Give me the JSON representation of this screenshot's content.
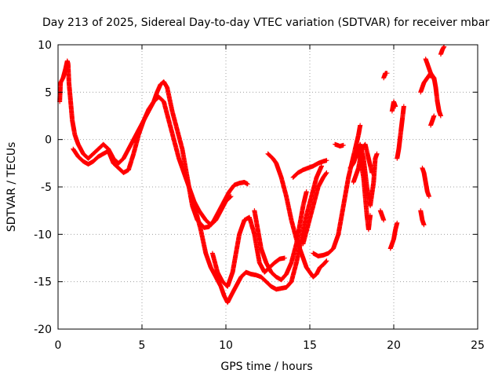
{
  "chart_data": {
    "type": "scatter",
    "title": "Day 213 of 2025, Sidereal Day-to-day VTEC variation (SDTVAR) for receiver mbar",
    "xlabel": "GPS time / hours",
    "ylabel": "SDTVAR / TECUs",
    "xlim": [
      0,
      25
    ],
    "ylim": [
      -20,
      10
    ],
    "xticks": [
      "0",
      "5",
      "10",
      "15",
      "20",
      "25"
    ],
    "yticks": [
      "10",
      "5",
      "0",
      "-5",
      "-10",
      "-15",
      "-20"
    ],
    "xtick_values": [
      0,
      5,
      10,
      15,
      20,
      25
    ],
    "ytick_values": [
      10,
      5,
      0,
      -5,
      -10,
      -15,
      -20
    ],
    "grid": true,
    "marker": "+",
    "color": "#ff0000",
    "series": [
      {
        "name": "s1",
        "points": [
          [
            0.1,
            4
          ],
          [
            0.15,
            6
          ],
          [
            0.3,
            6.5
          ],
          [
            0.45,
            7.5
          ],
          [
            0.55,
            8.3
          ],
          [
            0.6,
            8
          ],
          [
            0.65,
            6
          ],
          [
            0.75,
            4
          ],
          [
            0.85,
            2
          ],
          [
            1.0,
            0.5
          ],
          [
            1.2,
            -0.5
          ],
          [
            1.5,
            -1.5
          ],
          [
            1.8,
            -2
          ],
          [
            2.1,
            -1.5
          ],
          [
            2.4,
            -1
          ],
          [
            2.7,
            -0.5
          ],
          [
            3.0,
            -1
          ],
          [
            3.3,
            -2
          ],
          [
            3.6,
            -2.5
          ],
          [
            3.9,
            -2
          ],
          [
            4.2,
            -1
          ],
          [
            4.5,
            0
          ],
          [
            4.8,
            1
          ],
          [
            5.1,
            2
          ],
          [
            5.4,
            3
          ],
          [
            5.7,
            4
          ],
          [
            5.9,
            5
          ],
          [
            6.1,
            5.8
          ],
          [
            6.3,
            6.1
          ],
          [
            6.5,
            5.5
          ],
          [
            6.8,
            3
          ],
          [
            7.1,
            1
          ],
          [
            7.4,
            -1
          ],
          [
            7.7,
            -4
          ],
          [
            8.0,
            -7
          ],
          [
            8.3,
            -8.5
          ],
          [
            8.7,
            -9.3
          ],
          [
            9.0,
            -9.2
          ],
          [
            9.3,
            -8.5
          ],
          [
            9.6,
            -7.5
          ],
          [
            9.9,
            -6.5
          ],
          [
            10.2,
            -5.5
          ],
          [
            10.5,
            -4.8
          ],
          [
            10.8,
            -4.6
          ],
          [
            11.1,
            -4.5
          ],
          [
            11.3,
            -4.7
          ]
        ]
      },
      {
        "name": "s2",
        "points": [
          [
            0.9,
            -1
          ],
          [
            1.2,
            -1.8
          ],
          [
            1.5,
            -2.3
          ],
          [
            1.8,
            -2.6
          ],
          [
            2.1,
            -2.3
          ],
          [
            2.4,
            -1.8
          ],
          [
            2.7,
            -1.5
          ],
          [
            3.0,
            -1.2
          ],
          [
            3.3,
            -2.5
          ],
          [
            3.6,
            -3
          ],
          [
            3.9,
            -3.5
          ],
          [
            4.2,
            -3.2
          ],
          [
            4.5,
            -1.5
          ],
          [
            4.8,
            0.5
          ],
          [
            5.1,
            2
          ],
          [
            5.4,
            3.2
          ],
          [
            5.7,
            4
          ],
          [
            6.0,
            4.5
          ],
          [
            6.3,
            4
          ],
          [
            6.6,
            2
          ],
          [
            6.9,
            0
          ],
          [
            7.2,
            -2
          ],
          [
            7.5,
            -3.5
          ],
          [
            7.8,
            -5
          ],
          [
            8.1,
            -6.5
          ],
          [
            8.4,
            -7.5
          ],
          [
            8.8,
            -8.5
          ],
          [
            9.1,
            -9
          ],
          [
            9.4,
            -8.5
          ],
          [
            9.7,
            -7.5
          ],
          [
            10.0,
            -6.5
          ],
          [
            10.3,
            -6
          ]
        ]
      },
      {
        "name": "s3",
        "points": [
          [
            7.9,
            -6
          ],
          [
            8.2,
            -7.5
          ],
          [
            8.5,
            -9.5
          ],
          [
            8.8,
            -12
          ],
          [
            9.1,
            -13.5
          ],
          [
            9.4,
            -14.5
          ],
          [
            9.7,
            -15.5
          ],
          [
            9.9,
            -16.5
          ],
          [
            10.1,
            -17.2
          ],
          [
            10.3,
            -16.5
          ],
          [
            10.6,
            -15.5
          ],
          [
            10.9,
            -14.5
          ],
          [
            11.2,
            -14
          ],
          [
            11.5,
            -14.2
          ],
          [
            11.8,
            -14.3
          ],
          [
            12.1,
            -14.5
          ],
          [
            12.4,
            -15
          ],
          [
            12.7,
            -15.5
          ],
          [
            13.0,
            -15.8
          ],
          [
            13.3,
            -15.7
          ],
          [
            13.6,
            -15.6
          ],
          [
            13.9,
            -15
          ],
          [
            14.2,
            -13
          ],
          [
            14.5,
            -10.5
          ],
          [
            14.8,
            -8
          ],
          [
            15.1,
            -6
          ],
          [
            15.4,
            -4
          ],
          [
            15.7,
            -2.8
          ]
        ]
      },
      {
        "name": "s4",
        "points": [
          [
            9.2,
            -12
          ],
          [
            9.5,
            -14
          ],
          [
            9.8,
            -15
          ],
          [
            10.1,
            -15.5
          ],
          [
            10.4,
            -14
          ],
          [
            10.6,
            -12
          ],
          [
            10.8,
            -10
          ],
          [
            11.1,
            -8.5
          ],
          [
            11.4,
            -8.2
          ],
          [
            11.7,
            -10
          ],
          [
            12.0,
            -13
          ],
          [
            12.3,
            -14
          ],
          [
            12.6,
            -13.5
          ],
          [
            12.9,
            -13
          ],
          [
            13.2,
            -12.6
          ],
          [
            13.5,
            -12.5
          ]
        ]
      },
      {
        "name": "s5",
        "points": [
          [
            11.7,
            -7.5
          ],
          [
            11.9,
            -9.5
          ],
          [
            12.1,
            -11.5
          ],
          [
            12.4,
            -13
          ],
          [
            12.7,
            -14
          ],
          [
            13.0,
            -14.5
          ],
          [
            13.3,
            -14.8
          ],
          [
            13.6,
            -14.2
          ],
          [
            13.9,
            -13
          ],
          [
            14.2,
            -11
          ],
          [
            14.4,
            -9
          ],
          [
            14.6,
            -7
          ],
          [
            14.8,
            -5.5
          ]
        ]
      },
      {
        "name": "s6",
        "points": [
          [
            12.5,
            -1.5
          ],
          [
            12.8,
            -2
          ],
          [
            13.0,
            -2.5
          ],
          [
            13.3,
            -4
          ],
          [
            13.6,
            -6
          ],
          [
            13.9,
            -8.5
          ],
          [
            14.2,
            -10.5
          ],
          [
            14.5,
            -12
          ],
          [
            14.8,
            -13.5
          ],
          [
            15.0,
            -14
          ],
          [
            15.2,
            -14.5
          ],
          [
            15.4,
            -14.2
          ],
          [
            15.6,
            -13.5
          ],
          [
            15.8,
            -13.2
          ],
          [
            16.0,
            -12.8
          ]
        ]
      },
      {
        "name": "s7",
        "points": [
          [
            14.0,
            -4
          ],
          [
            14.3,
            -3.5
          ],
          [
            14.6,
            -3.2
          ],
          [
            14.9,
            -3
          ],
          [
            15.2,
            -2.8
          ],
          [
            15.5,
            -2.5
          ],
          [
            15.8,
            -2.3
          ],
          [
            16.0,
            -2.2
          ]
        ]
      },
      {
        "name": "s8",
        "points": [
          [
            14.6,
            -11
          ],
          [
            14.9,
            -9
          ],
          [
            15.2,
            -7
          ],
          [
            15.5,
            -5
          ],
          [
            15.8,
            -4
          ],
          [
            16.0,
            -3.5
          ]
        ]
      },
      {
        "name": "s9",
        "points": [
          [
            15.2,
            -12
          ],
          [
            15.5,
            -12.3
          ],
          [
            15.8,
            -12.2
          ],
          [
            16.1,
            -12
          ],
          [
            16.4,
            -11.5
          ],
          [
            16.7,
            -10
          ],
          [
            16.9,
            -8
          ],
          [
            17.1,
            -6
          ],
          [
            17.3,
            -4
          ],
          [
            17.5,
            -2.5
          ],
          [
            17.7,
            -1
          ],
          [
            17.9,
            0.5
          ],
          [
            18.0,
            1.5
          ]
        ]
      },
      {
        "name": "s10",
        "points": [
          [
            16.5,
            -0.5
          ],
          [
            16.8,
            -0.7
          ],
          [
            17.0,
            -0.6
          ]
        ]
      },
      {
        "name": "s11",
        "points": [
          [
            17.4,
            -3
          ],
          [
            17.6,
            -2.5
          ],
          [
            17.8,
            -1.5
          ],
          [
            18.0,
            -0.5
          ],
          [
            18.2,
            -2
          ],
          [
            18.4,
            -5
          ],
          [
            18.6,
            -7
          ],
          [
            18.8,
            -4.5
          ],
          [
            18.9,
            -2
          ],
          [
            19.0,
            -1.5
          ]
        ]
      },
      {
        "name": "s12",
        "points": [
          [
            17.6,
            -4.5
          ],
          [
            17.9,
            -3
          ],
          [
            18.1,
            -1
          ],
          [
            18.3,
            -0.5
          ],
          [
            18.5,
            -2
          ],
          [
            18.7,
            -3.5
          ]
        ]
      },
      {
        "name": "s13",
        "points": [
          [
            17.9,
            -1
          ],
          [
            18.2,
            -4
          ],
          [
            18.4,
            -8
          ],
          [
            18.5,
            -9.5
          ],
          [
            18.6,
            -8
          ]
        ]
      },
      {
        "name": "s14",
        "points": [
          [
            19.2,
            -7.5
          ],
          [
            19.3,
            -8
          ],
          [
            19.4,
            -8.5
          ]
        ]
      },
      {
        "name": "s15",
        "points": [
          [
            19.4,
            6.5
          ],
          [
            19.5,
            7
          ],
          [
            19.6,
            7
          ]
        ]
      },
      {
        "name": "s16",
        "points": [
          [
            19.8,
            -11.5
          ],
          [
            19.9,
            -11
          ],
          [
            20.0,
            -10.5
          ],
          [
            20.1,
            -9.5
          ],
          [
            20.2,
            -8.8
          ]
        ]
      },
      {
        "name": "s17",
        "points": [
          [
            19.9,
            3
          ],
          [
            20.0,
            4
          ],
          [
            20.1,
            3.5
          ]
        ]
      },
      {
        "name": "s18",
        "points": [
          [
            20.2,
            -2
          ],
          [
            20.3,
            -1
          ],
          [
            20.4,
            0.5
          ],
          [
            20.5,
            2
          ],
          [
            20.6,
            3.5
          ]
        ]
      },
      {
        "name": "s19",
        "points": [
          [
            21.6,
            -7.5
          ],
          [
            21.7,
            -8.5
          ],
          [
            21.8,
            -9
          ]
        ]
      },
      {
        "name": "s20",
        "points": [
          [
            21.7,
            -3
          ],
          [
            21.8,
            -3.5
          ],
          [
            21.9,
            -4.5
          ],
          [
            22.0,
            -5.5
          ],
          [
            22.1,
            -6
          ]
        ]
      },
      {
        "name": "s21",
        "points": [
          [
            21.6,
            5
          ],
          [
            21.8,
            6
          ],
          [
            22.0,
            6.5
          ],
          [
            22.2,
            7
          ],
          [
            22.4,
            6.5
          ],
          [
            22.5,
            5.5
          ],
          [
            22.6,
            4
          ],
          [
            22.7,
            3
          ],
          [
            22.8,
            2.5
          ]
        ]
      },
      {
        "name": "s22",
        "points": [
          [
            21.9,
            8.5
          ],
          [
            22.1,
            7.5
          ],
          [
            22.3,
            6.5
          ]
        ]
      },
      {
        "name": "s23",
        "points": [
          [
            22.2,
            1.5
          ],
          [
            22.3,
            2
          ],
          [
            22.4,
            2.5
          ]
        ]
      },
      {
        "name": "s24",
        "points": [
          [
            22.8,
            9
          ],
          [
            22.9,
            9.5
          ],
          [
            23.0,
            9.8
          ]
        ]
      }
    ]
  }
}
